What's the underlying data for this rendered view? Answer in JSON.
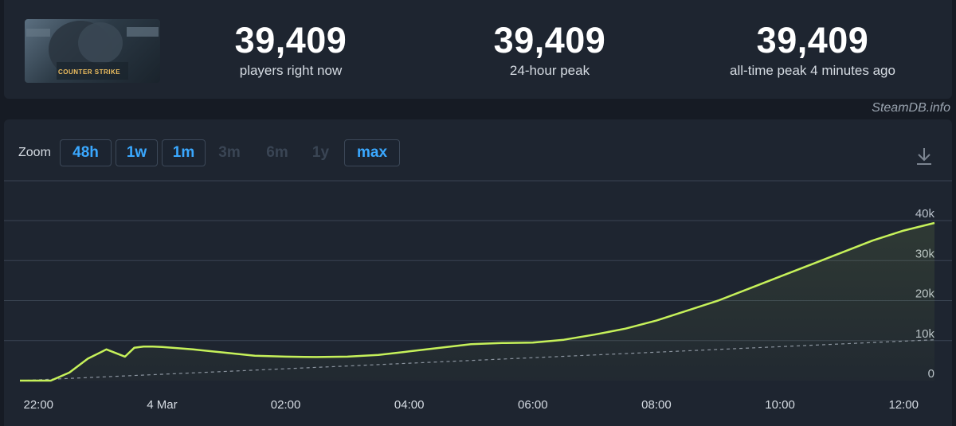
{
  "game": {
    "name": "Counter-Strike",
    "logo_text": "COUNTER STRIKE"
  },
  "stats": [
    {
      "value": "39,409",
      "label": "players right now"
    },
    {
      "value": "39,409",
      "label": "24-hour peak"
    },
    {
      "value": "39,409",
      "label": "all-time peak 4 minutes ago"
    }
  ],
  "watermark": "SteamDB.info",
  "zoom": {
    "label": "Zoom",
    "buttons": [
      {
        "label": "48h",
        "enabled": true
      },
      {
        "label": "1w",
        "enabled": true
      },
      {
        "label": "1m",
        "enabled": true
      },
      {
        "label": "3m",
        "enabled": false
      },
      {
        "label": "6m",
        "enabled": false
      },
      {
        "label": "1y",
        "enabled": false
      },
      {
        "label": "max",
        "enabled": true
      }
    ]
  },
  "icons": {
    "download": "download-icon"
  },
  "colors": {
    "line": "#c6f15a",
    "accent": "#3aa8ff",
    "grid": "#3a4452",
    "trend": "#8a939e"
  },
  "chart_data": {
    "type": "line",
    "y_ticks": [
      "0",
      "10k",
      "20k",
      "30k",
      "40k"
    ],
    "ylim": [
      0,
      50000
    ],
    "x_ticks": [
      {
        "label": "22:00",
        "hour": -2.0
      },
      {
        "label": "4 Mar",
        "hour": 0.0
      },
      {
        "label": "02:00",
        "hour": 2.0
      },
      {
        "label": "04:00",
        "hour": 4.0
      },
      {
        "label": "06:00",
        "hour": 6.0
      },
      {
        "label": "08:00",
        "hour": 8.0
      },
      {
        "label": "10:00",
        "hour": 10.0
      },
      {
        "label": "12:00",
        "hour": 12.0
      }
    ],
    "series": [
      {
        "x": [
          -2.3,
          -1.8,
          -1.5,
          -1.2,
          -0.9,
          -0.6,
          -0.45,
          -0.3,
          -0.15,
          0.0,
          0.5,
          1.0,
          1.5,
          2.0,
          2.5,
          3.0,
          3.5,
          4.0,
          4.5,
          5.0,
          5.5,
          6.0,
          6.5,
          7.0,
          7.5,
          8.0,
          8.5,
          9.0,
          9.5,
          10.0,
          10.5,
          11.0,
          11.5,
          12.0,
          12.5
        ],
        "y": [
          0,
          0,
          2000,
          5500,
          7800,
          6000,
          8200,
          8500,
          8500,
          8400,
          7800,
          7000,
          6200,
          6000,
          5900,
          6000,
          6400,
          7300,
          8200,
          9100,
          9400,
          9500,
          10200,
          11500,
          13000,
          15000,
          17500,
          20000,
          23000,
          26000,
          29000,
          32000,
          35000,
          37500,
          39409
        ]
      },
      {
        "name": "trend",
        "x": [
          -2.3,
          12.5
        ],
        "y": [
          0,
          10200
        ]
      }
    ]
  }
}
